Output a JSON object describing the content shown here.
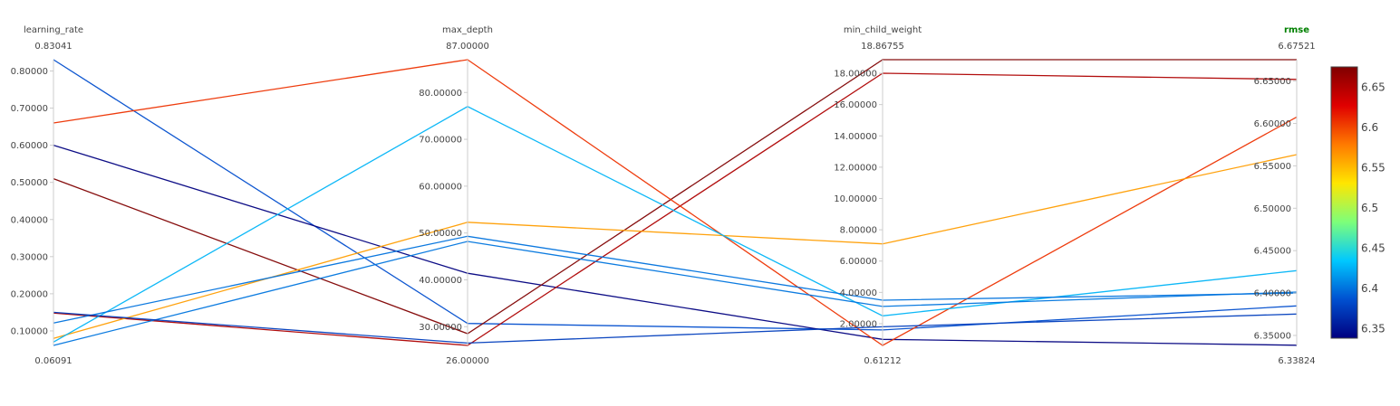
{
  "chart_data": {
    "type": "parallel_coordinates",
    "title": "",
    "color_dimension": "rmse",
    "colorscale": [
      "#000080",
      "#0050d0",
      "#00c8ff",
      "#7dff7a",
      "#ffe600",
      "#ff7a00",
      "#e00000",
      "#800000"
    ],
    "dimensions": [
      {
        "name": "learning_rate",
        "range": [
          0.06091,
          0.83041
        ],
        "range_labels": {
          "max": "0.83041",
          "min": "0.06091"
        },
        "tick_values": [
          0.1,
          0.2,
          0.3,
          0.4,
          0.5,
          0.6,
          0.7,
          0.8
        ],
        "tick_labels": [
          "0.10000",
          "0.20000",
          "0.30000",
          "0.40000",
          "0.50000",
          "0.60000",
          "0.70000",
          "0.80000"
        ]
      },
      {
        "name": "max_depth",
        "range": [
          26,
          87
        ],
        "range_labels": {
          "max": "87.00000",
          "min": "26.00000"
        },
        "tick_values": [
          30,
          40,
          50,
          60,
          70,
          80
        ],
        "tick_labels": [
          "30.00000",
          "40.00000",
          "50.00000",
          "60.00000",
          "70.00000",
          "80.00000"
        ]
      },
      {
        "name": "min_child_weight",
        "range": [
          0.61212,
          18.86755
        ],
        "range_labels": {
          "max": "18.86755",
          "min": "0.61212"
        },
        "tick_values": [
          2,
          4,
          6,
          8,
          10,
          12,
          14,
          16,
          18
        ],
        "tick_labels": [
          "2.00000",
          "4.00000",
          "6.00000",
          "8.00000",
          "10.00000",
          "12.00000",
          "14.00000",
          "16.00000",
          "18.00000"
        ]
      },
      {
        "name": "rmse",
        "range": [
          6.33824,
          6.67521
        ],
        "range_labels": {
          "max": "6.67521",
          "min": "6.33824"
        },
        "tick_values": [
          6.35,
          6.4,
          6.45,
          6.5,
          6.55,
          6.6,
          6.65
        ],
        "tick_labels": [
          "6.35000",
          "6.40000",
          "6.45000",
          "6.50000",
          "6.55000",
          "6.60000",
          "6.65000"
        ]
      }
    ],
    "lines": [
      {
        "values": [
          0.83041,
          30.7,
          1.6,
          6.3848
        ]
      },
      {
        "values": [
          0.6,
          41.4,
          1.0,
          6.3384
        ]
      },
      {
        "values": [
          0.51,
          28.5,
          18.86755,
          6.67521
        ]
      },
      {
        "values": [
          0.148,
          26.0,
          18.0,
          6.652
        ]
      },
      {
        "values": [
          0.66,
          87.0,
          0.61212,
          6.6076
        ]
      },
      {
        "values": [
          0.08,
          52.3,
          7.1,
          6.5632
        ]
      },
      {
        "values": [
          0.07,
          77.0,
          2.5,
          6.4264
        ]
      },
      {
        "values": [
          0.06091,
          48.2,
          3.1,
          6.4012
        ]
      },
      {
        "values": [
          0.121,
          49.3,
          3.5,
          6.4
        ]
      },
      {
        "values": [
          0.15,
          26.5,
          1.8,
          6.3752
        ]
      }
    ],
    "colorbar": {
      "range": [
        6.33824,
        6.67521
      ],
      "tick_values": [
        6.35,
        6.4,
        6.45,
        6.5,
        6.55,
        6.6,
        6.65
      ],
      "tick_labels": [
        "6.35",
        "6.4",
        "6.45",
        "6.5",
        "6.55",
        "6.6",
        "6.65"
      ]
    }
  }
}
